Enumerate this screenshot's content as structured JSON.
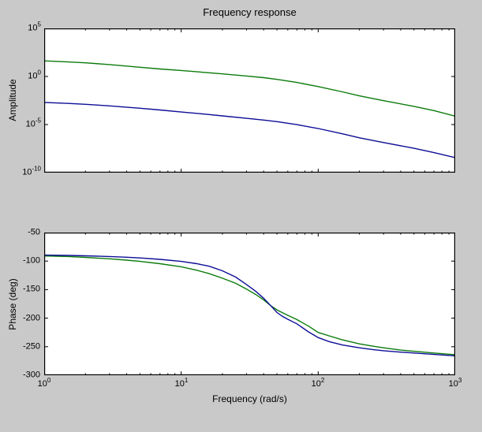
{
  "figure": {
    "colors": {
      "background": "#c9c9c9",
      "plot_background": "#ffffff",
      "axis": "#000000",
      "green_line": "#0b7b0b",
      "blue_line": "#0d0d96"
    }
  },
  "chart_data": [
    {
      "type": "line",
      "title": "Frequency response",
      "xlabel": "",
      "ylabel": "Amplitude",
      "xscale": "log",
      "yscale": "log",
      "xlim": [
        1,
        1000
      ],
      "ylim_log10": [
        -10,
        5
      ],
      "grid": false,
      "legend": "none",
      "yticks_log10": [
        5,
        0,
        -5,
        -10
      ],
      "ytick_labels": [
        {
          "base": "10",
          "exp": "5"
        },
        {
          "base": "10",
          "exp": "0"
        },
        {
          "base": "10",
          "exp": "-5"
        },
        {
          "base": "10",
          "exp": "-10"
        }
      ],
      "series": [
        {
          "name": "green",
          "color": "#0b7b0b",
          "points_x_log10y": [
            [
              1,
              1.62
            ],
            [
              1.5,
              1.51
            ],
            [
              2,
              1.42
            ],
            [
              3,
              1.24
            ],
            [
              5,
              0.96
            ],
            [
              7,
              0.78
            ],
            [
              10,
              0.62
            ],
            [
              15,
              0.42
            ],
            [
              20,
              0.27
            ],
            [
              30,
              0.05
            ],
            [
              40,
              -0.12
            ],
            [
              50,
              -0.3
            ],
            [
              70,
              -0.62
            ],
            [
              100,
              -1.05
            ],
            [
              150,
              -1.6
            ],
            [
              200,
              -2.02
            ],
            [
              300,
              -2.52
            ],
            [
              500,
              -3.11
            ],
            [
              700,
              -3.55
            ],
            [
              1000,
              -4.12
            ]
          ]
        },
        {
          "name": "blue",
          "color": "#0d0d96",
          "points_x_log10y": [
            [
              1,
              -2.7
            ],
            [
              1.5,
              -2.8
            ],
            [
              2,
              -2.89
            ],
            [
              3,
              -3.06
            ],
            [
              5,
              -3.3
            ],
            [
              7,
              -3.48
            ],
            [
              10,
              -3.7
            ],
            [
              15,
              -3.92
            ],
            [
              20,
              -4.1
            ],
            [
              30,
              -4.35
            ],
            [
              40,
              -4.53
            ],
            [
              50,
              -4.7
            ],
            [
              70,
              -5.01
            ],
            [
              100,
              -5.41
            ],
            [
              150,
              -5.96
            ],
            [
              200,
              -6.38
            ],
            [
              300,
              -6.87
            ],
            [
              500,
              -7.47
            ],
            [
              700,
              -7.92
            ],
            [
              1000,
              -8.44
            ]
          ]
        }
      ]
    },
    {
      "type": "line",
      "title": "",
      "xlabel": "Frequency (rad/s)",
      "ylabel": "Phase (deg)",
      "xscale": "log",
      "yscale": "linear",
      "xlim": [
        1,
        1000
      ],
      "ylim": [
        -300,
        -50
      ],
      "grid": false,
      "legend": "none",
      "yticks": [
        -50,
        -100,
        -150,
        -200,
        -250,
        -300
      ],
      "ytick_labels": [
        "-50",
        "-100",
        "-150",
        "-200",
        "-250",
        "-300"
      ],
      "xticks": [
        1,
        10,
        100,
        1000
      ],
      "xtick_labels": [
        {
          "base": "10",
          "exp": "0"
        },
        {
          "base": "10",
          "exp": "1"
        },
        {
          "base": "10",
          "exp": "2"
        },
        {
          "base": "10",
          "exp": "3"
        }
      ],
      "series": [
        {
          "name": "green",
          "color": "#0b7b0b",
          "points_x_deg": [
            [
              1,
              -91
            ],
            [
              1.5,
              -92
            ],
            [
              2,
              -93.5
            ],
            [
              3,
              -96
            ],
            [
              4,
              -98.3
            ],
            [
              5,
              -100.5
            ],
            [
              7,
              -104.5
            ],
            [
              10,
              -110
            ],
            [
              13,
              -116
            ],
            [
              16,
              -122
            ],
            [
              20,
              -130
            ],
            [
              25,
              -139
            ],
            [
              30,
              -149
            ],
            [
              35,
              -158.5
            ],
            [
              40,
              -168
            ],
            [
              45,
              -178
            ],
            [
              50,
              -185.5
            ],
            [
              55,
              -190.5
            ],
            [
              60,
              -195
            ],
            [
              70,
              -202.5
            ],
            [
              85,
              -214
            ],
            [
              100,
              -225
            ],
            [
              120,
              -231
            ],
            [
              150,
              -238
            ],
            [
              200,
              -245
            ],
            [
              250,
              -249
            ],
            [
              300,
              -252
            ],
            [
              400,
              -256
            ],
            [
              500,
              -258
            ],
            [
              700,
              -261
            ],
            [
              1000,
              -264
            ]
          ]
        },
        {
          "name": "blue",
          "color": "#0d0d96",
          "points_x_deg": [
            [
              1,
              -89.5
            ],
            [
              1.5,
              -90
            ],
            [
              2,
              -90.8
            ],
            [
              3,
              -92
            ],
            [
              4,
              -93.2
            ],
            [
              5,
              -94.5
            ],
            [
              7,
              -97
            ],
            [
              10,
              -100.5
            ],
            [
              13,
              -104.5
            ],
            [
              16,
              -109
            ],
            [
              20,
              -117
            ],
            [
              25,
              -128
            ],
            [
              30,
              -141
            ],
            [
              35,
              -153
            ],
            [
              40,
              -165
            ],
            [
              45,
              -178
            ],
            [
              50,
              -190
            ],
            [
              55,
              -197
            ],
            [
              60,
              -202
            ],
            [
              70,
              -210
            ],
            [
              85,
              -224
            ],
            [
              100,
              -234
            ],
            [
              120,
              -241
            ],
            [
              150,
              -247
            ],
            [
              200,
              -252
            ],
            [
              250,
              -255
            ],
            [
              300,
              -257
            ],
            [
              400,
              -259.5
            ],
            [
              500,
              -261
            ],
            [
              700,
              -263.5
            ],
            [
              1000,
              -266
            ]
          ]
        }
      ]
    }
  ]
}
